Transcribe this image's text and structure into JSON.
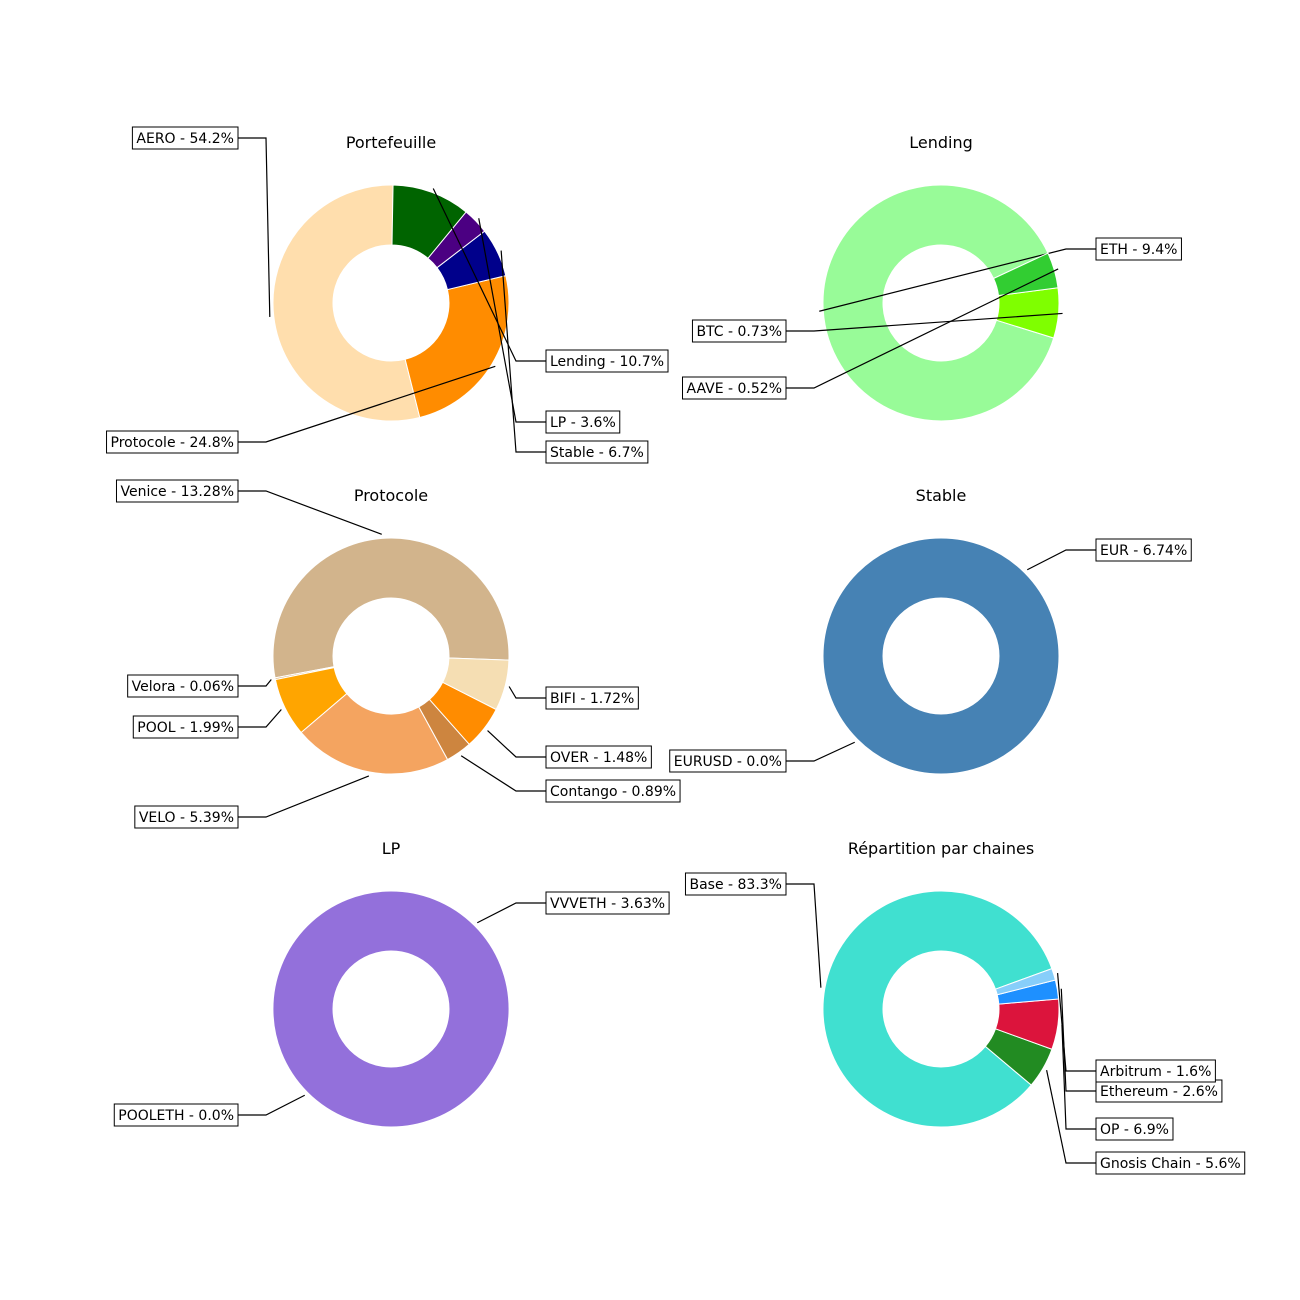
{
  "chart_data": [
    {
      "type": "pie",
      "donut": true,
      "title": "Portefeuille",
      "slices": [
        {
          "name": "AERO",
          "value": 54.2,
          "label": "AERO - 54.2%",
          "color": "#FFDEAD"
        },
        {
          "name": "Protocole",
          "value": 24.8,
          "label": "Protocole - 24.8%",
          "color": "#FF8C00"
        },
        {
          "name": "Stable",
          "value": 6.7,
          "label": "Stable - 6.7%",
          "color": "#00008B"
        },
        {
          "name": "LP",
          "value": 3.6,
          "label": "LP - 3.6%",
          "color": "#4B0082"
        },
        {
          "name": "Lending",
          "value": 10.7,
          "label": "Lending - 10.7%",
          "color": "#006400"
        }
      ]
    },
    {
      "type": "pie",
      "donut": true,
      "title": "Lending",
      "slices": [
        {
          "name": "ETH",
          "value": 9.4,
          "label": "ETH - 9.4%",
          "color": "#98FB98"
        },
        {
          "name": "BTC",
          "value": 0.73,
          "label": "BTC - 0.73%",
          "color": "#7FFF00"
        },
        {
          "name": "AAVE",
          "value": 0.52,
          "label": "AAVE - 0.52%",
          "color": "#32CD32"
        }
      ]
    },
    {
      "type": "pie",
      "donut": true,
      "title": "Protocole",
      "slices": [
        {
          "name": "Venice",
          "value": 13.28,
          "label": "Venice - 13.28%",
          "color": "#D2B48C"
        },
        {
          "name": "Velora",
          "value": 0.06,
          "label": "Velora - 0.06%",
          "color": "#DEB887"
        },
        {
          "name": "POOL",
          "value": 1.99,
          "label": "POOL - 1.99%",
          "color": "#FFA500"
        },
        {
          "name": "VELO",
          "value": 5.39,
          "label": "VELO - 5.39%",
          "color": "#F4A460"
        },
        {
          "name": "Contango",
          "value": 0.89,
          "label": "Contango - 0.89%",
          "color": "#CD853F"
        },
        {
          "name": "OVER",
          "value": 1.48,
          "label": "OVER - 1.48%",
          "color": "#FF8C00"
        },
        {
          "name": "BIFI",
          "value": 1.72,
          "label": "BIFI - 1.72%",
          "color": "#F5DEB3"
        }
      ]
    },
    {
      "type": "pie",
      "donut": true,
      "title": "Stable",
      "slices": [
        {
          "name": "EUR",
          "value": 6.74,
          "label": "EUR - 6.74%",
          "color": "#4682B4"
        },
        {
          "name": "EURUSD",
          "value": 0.0,
          "label": "EURUSD - 0.0%",
          "color": "#4682B4"
        }
      ]
    },
    {
      "type": "pie",
      "donut": true,
      "title": "LP",
      "slices": [
        {
          "name": "VVVETH",
          "value": 3.63,
          "label": "VVVETH - 3.63%",
          "color": "#9370DB"
        },
        {
          "name": "POOLETH",
          "value": 0.0,
          "label": "POOLETH - 0.0%",
          "color": "#9370DB"
        }
      ]
    },
    {
      "type": "pie",
      "donut": true,
      "title": "Répartition par chaines",
      "slices": [
        {
          "name": "Base",
          "value": 83.3,
          "label": "Base - 83.3%",
          "color": "#40E0D0"
        },
        {
          "name": "Gnosis Chain",
          "value": 5.6,
          "label": "Gnosis Chain - 5.6%",
          "color": "#228B22"
        },
        {
          "name": "OP",
          "value": 6.9,
          "label": "OP - 6.9%",
          "color": "#DC143C"
        },
        {
          "name": "Ethereum",
          "value": 2.6,
          "label": "Ethereum - 2.6%",
          "color": "#1E90FF"
        },
        {
          "name": "Arbitrum",
          "value": 1.6,
          "label": "Arbitrum - 1.6%",
          "color": "#87CEFA"
        }
      ]
    }
  ]
}
